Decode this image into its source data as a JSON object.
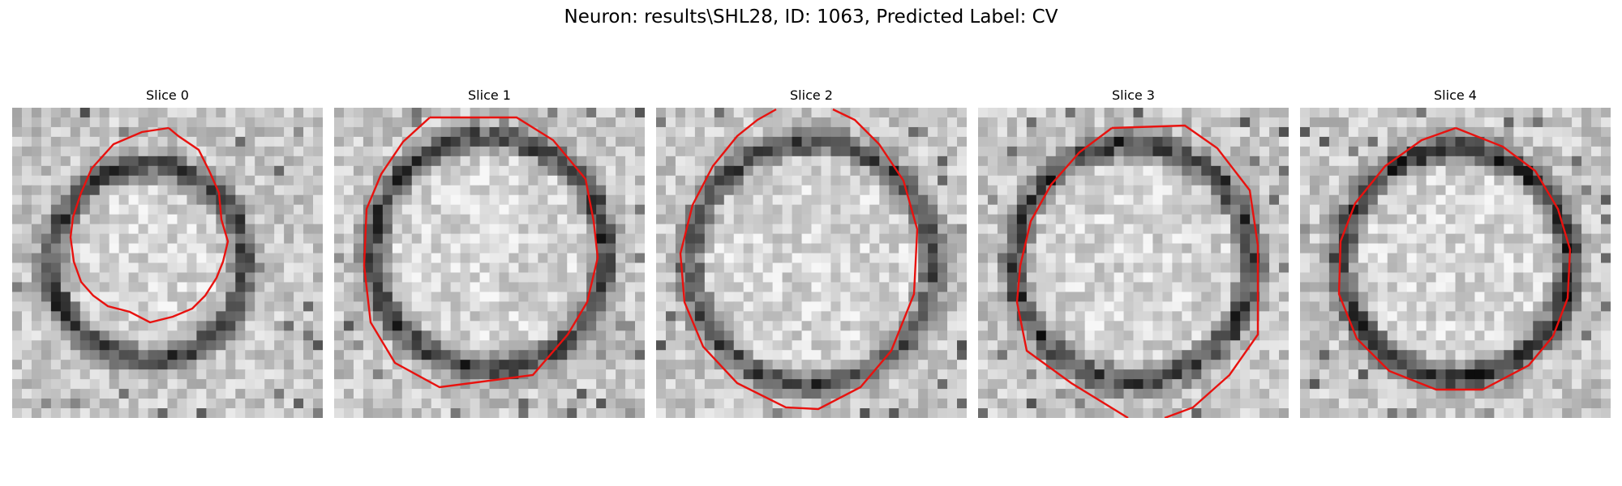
{
  "figure": {
    "title": "Neuron: results\\SHL28, ID: 1063, Predicted Label: CV",
    "contour_color": "#e8120f",
    "slices": [
      {
        "title": "Slice 0"
      },
      {
        "title": "Slice 1"
      },
      {
        "title": "Slice 2"
      },
      {
        "title": "Slice 3"
      },
      {
        "title": "Slice 4"
      }
    ]
  }
}
